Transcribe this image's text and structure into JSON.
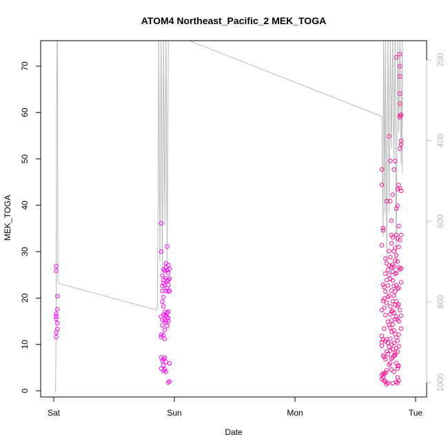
{
  "chart_data": {
    "type": "scatter",
    "title": "ATOM4 Northeast_Pacific_2 MEK_TOGA",
    "xlabel": "Date",
    "ylabel": "MEK_TOGA",
    "x_tick_labels": [
      "Sat",
      "Sun",
      "Mon",
      "Tue"
    ],
    "x_tick_days": [
      0,
      1,
      2,
      3
    ],
    "xlim_days": [
      -0.12,
      3.12
    ],
    "ylim": [
      0,
      75
    ],
    "y_ticks": [
      0,
      10,
      20,
      30,
      40,
      50,
      60,
      70
    ],
    "right_axis": {
      "label": "",
      "ticks": [
        200,
        400,
        600,
        800,
        1000
      ],
      "ylim_reversed": [
        1025,
        140
      ],
      "color": "#b8b8b8"
    },
    "colors": {
      "points": "#ff00ff",
      "points_late": "#ff1493",
      "altitude_line": "#b8b8b8"
    },
    "series": [
      {
        "marker": "open-circle",
        "color": "#ff00ff",
        "points": [
          [
            0.02,
            26.9
          ],
          [
            0.02,
            25.9
          ],
          [
            0.02,
            16.6
          ],
          [
            0.02,
            16.1
          ],
          [
            0.02,
            15.5
          ],
          [
            0.02,
            12.6
          ],
          [
            0.02,
            11.6
          ],
          [
            0.03,
            20.4
          ],
          [
            0.03,
            17.6
          ],
          [
            0.03,
            14.6
          ],
          [
            0.03,
            13.3
          ],
          [
            0.89,
            36.1
          ],
          [
            0.89,
            30.0
          ],
          [
            0.89,
            16.0
          ],
          [
            0.89,
            12.1
          ],
          [
            0.89,
            11.6
          ],
          [
            0.89,
            7.2
          ],
          [
            0.89,
            4.8
          ],
          [
            0.9,
            24.9
          ],
          [
            0.9,
            22.6
          ],
          [
            0.9,
            21.5
          ],
          [
            0.9,
            19.2
          ],
          [
            0.9,
            15.3
          ],
          [
            0.9,
            14.1
          ],
          [
            0.9,
            6.4
          ],
          [
            0.91,
            26.2
          ],
          [
            0.91,
            23.9
          ],
          [
            0.91,
            23.2
          ],
          [
            0.91,
            20.2
          ],
          [
            0.91,
            18.2
          ],
          [
            0.91,
            16.4
          ],
          [
            0.91,
            12.0
          ],
          [
            0.91,
            6.8
          ],
          [
            0.91,
            5.5
          ],
          [
            0.91,
            4.3
          ],
          [
            0.92,
            25.9
          ],
          [
            0.92,
            22.8
          ],
          [
            0.92,
            17.0
          ],
          [
            0.92,
            15.2
          ],
          [
            0.92,
            13.1
          ],
          [
            0.92,
            11.2
          ],
          [
            0.92,
            7.1
          ],
          [
            0.92,
            4.6
          ],
          [
            0.93,
            27.5
          ],
          [
            0.93,
            26.6
          ],
          [
            0.93,
            24.3
          ],
          [
            0.93,
            21.6
          ],
          [
            0.93,
            16.2
          ],
          [
            0.93,
            14.8
          ],
          [
            0.93,
            6.2
          ],
          [
            0.93,
            4.1
          ],
          [
            0.94,
            31.1
          ],
          [
            0.94,
            26.0
          ],
          [
            0.94,
            23.7
          ],
          [
            0.94,
            22.1
          ],
          [
            0.94,
            16.8
          ],
          [
            0.94,
            15.8
          ],
          [
            0.94,
            14.0
          ],
          [
            0.95,
            27.1
          ],
          [
            0.95,
            25.4
          ],
          [
            0.95,
            23.9
          ],
          [
            0.95,
            22.8
          ],
          [
            0.95,
            21.4
          ],
          [
            0.95,
            17.1
          ],
          [
            0.95,
            15.7
          ],
          [
            0.95,
            15.0
          ],
          [
            0.95,
            1.8
          ],
          [
            0.96,
            26.3
          ],
          [
            0.96,
            24.2
          ],
          [
            0.96,
            21.6
          ],
          [
            0.96,
            5.9
          ],
          [
            0.96,
            2.0
          ]
        ]
      },
      {
        "marker": "open-circle",
        "color": "#ff1493",
        "points": [
          [
            2.72,
            47.7
          ],
          [
            2.72,
            44.4
          ],
          [
            2.72,
            31.4
          ],
          [
            2.72,
            17.4
          ],
          [
            2.72,
            11.8
          ],
          [
            2.72,
            10.5
          ],
          [
            2.72,
            9.7
          ],
          [
            2.72,
            3.4
          ],
          [
            2.72,
            2.5
          ],
          [
            2.73,
            35.1
          ],
          [
            2.73,
            34.6
          ],
          [
            2.73,
            22.9
          ],
          [
            2.73,
            19.4
          ],
          [
            2.73,
            11.0
          ],
          [
            2.73,
            7.6
          ],
          [
            2.73,
            3.7
          ],
          [
            2.73,
            2.9
          ],
          [
            2.74,
            22.4
          ],
          [
            2.74,
            19.9
          ],
          [
            2.74,
            17.9
          ],
          [
            2.74,
            13.4
          ],
          [
            2.74,
            7.3
          ],
          [
            2.74,
            3.6
          ],
          [
            2.74,
            2.2
          ],
          [
            2.75,
            28.5
          ],
          [
            2.75,
            25.3
          ],
          [
            2.75,
            21.4
          ],
          [
            2.75,
            16.3
          ],
          [
            2.75,
            10.7
          ],
          [
            2.75,
            6.8
          ],
          [
            2.75,
            3.9
          ],
          [
            2.75,
            1.9
          ],
          [
            2.76,
            40.9
          ],
          [
            2.76,
            27.5
          ],
          [
            2.76,
            23.9
          ],
          [
            2.76,
            19.0
          ],
          [
            2.76,
            11.1
          ],
          [
            2.76,
            8.5
          ],
          [
            2.76,
            4.4
          ],
          [
            2.76,
            1.4
          ],
          [
            2.77,
            26.1
          ],
          [
            2.77,
            22.7
          ],
          [
            2.77,
            20.2
          ],
          [
            2.77,
            14.9
          ],
          [
            2.77,
            10.3
          ],
          [
            2.77,
            7.9
          ],
          [
            2.77,
            1.7
          ],
          [
            2.78,
            54.9
          ],
          [
            2.78,
            30.1
          ],
          [
            2.78,
            27.0
          ],
          [
            2.78,
            25.0
          ],
          [
            2.78,
            20.5
          ],
          [
            2.78,
            14.2
          ],
          [
            2.78,
            9.5
          ],
          [
            2.78,
            5.6
          ],
          [
            2.79,
            49.6
          ],
          [
            2.79,
            40.9
          ],
          [
            2.79,
            28.8
          ],
          [
            2.79,
            24.1
          ],
          [
            2.79,
            18.2
          ],
          [
            2.79,
            16.5
          ],
          [
            2.79,
            13.6
          ],
          [
            2.79,
            11.2
          ],
          [
            2.79,
            8.7
          ],
          [
            2.79,
            6.0
          ],
          [
            2.8,
            36.7
          ],
          [
            2.8,
            33.6
          ],
          [
            2.8,
            31.8
          ],
          [
            2.8,
            26.7
          ],
          [
            2.8,
            21.6
          ],
          [
            2.8,
            17.1
          ],
          [
            2.8,
            15.2
          ],
          [
            2.8,
            12.7
          ],
          [
            2.8,
            10.0
          ],
          [
            2.8,
            7.0
          ],
          [
            2.8,
            4.6
          ],
          [
            2.81,
            42.3
          ],
          [
            2.81,
            33.1
          ],
          [
            2.81,
            27.2
          ],
          [
            2.81,
            25.7
          ],
          [
            2.81,
            23.8
          ],
          [
            2.81,
            19.3
          ],
          [
            2.81,
            17.3
          ],
          [
            2.81,
            14.3
          ],
          [
            2.81,
            9.0
          ],
          [
            2.81,
            7.2
          ],
          [
            2.81,
            1.6
          ],
          [
            2.82,
            47.7
          ],
          [
            2.82,
            30.1
          ],
          [
            2.82,
            26.8
          ],
          [
            2.82,
            22.6
          ],
          [
            2.82,
            20.5
          ],
          [
            2.82,
            16.8
          ],
          [
            2.82,
            13.0
          ],
          [
            2.82,
            10.3
          ],
          [
            2.82,
            7.6
          ],
          [
            2.82,
            4.1
          ],
          [
            2.83,
            49.5
          ],
          [
            2.83,
            30.8
          ],
          [
            2.83,
            28.1
          ],
          [
            2.83,
            25.2
          ],
          [
            2.83,
            21.4
          ],
          [
            2.83,
            18.5
          ],
          [
            2.83,
            15.4
          ],
          [
            2.83,
            12.2
          ],
          [
            2.83,
            8.1
          ],
          [
            2.83,
            7.7
          ],
          [
            2.84,
            71.9
          ],
          [
            2.84,
            39.3
          ],
          [
            2.84,
            33.6
          ],
          [
            2.84,
            29.2
          ],
          [
            2.84,
            25.4
          ],
          [
            2.84,
            22.8
          ],
          [
            2.84,
            19.3
          ],
          [
            2.84,
            16.0
          ],
          [
            2.84,
            11.5
          ],
          [
            2.84,
            9.2
          ],
          [
            2.84,
            6.0
          ],
          [
            2.84,
            1.9
          ],
          [
            2.85,
            43.5
          ],
          [
            2.85,
            39.9
          ],
          [
            2.85,
            32.8
          ],
          [
            2.85,
            27.9
          ],
          [
            2.85,
            22.0
          ],
          [
            2.85,
            18.3
          ],
          [
            2.85,
            15.4
          ],
          [
            2.85,
            10.8
          ],
          [
            2.85,
            8.4
          ],
          [
            2.85,
            5.4
          ],
          [
            2.85,
            4.8
          ],
          [
            2.85,
            2.9
          ],
          [
            2.85,
            1.7
          ],
          [
            2.86,
            44.4
          ],
          [
            2.86,
            35.5
          ],
          [
            2.86,
            31.0
          ],
          [
            2.86,
            26.6
          ],
          [
            2.86,
            22.2
          ],
          [
            2.86,
            18.6
          ],
          [
            2.86,
            15.0
          ],
          [
            2.86,
            12.1
          ],
          [
            2.86,
            9.6
          ],
          [
            2.86,
            5.4
          ],
          [
            2.86,
            2.2
          ],
          [
            2.87,
            72.6
          ],
          [
            2.87,
            70.0
          ],
          [
            2.87,
            67.8
          ],
          [
            2.87,
            64.1
          ],
          [
            2.87,
            61.9
          ],
          [
            2.87,
            59.4
          ],
          [
            2.87,
            59.0
          ],
          [
            2.87,
            52.2
          ],
          [
            2.87,
            43.7
          ],
          [
            2.87,
            32.5
          ],
          [
            2.87,
            26.2
          ],
          [
            2.87,
            17.4
          ],
          [
            2.88,
            59.5
          ],
          [
            2.88,
            53.9
          ],
          [
            2.88,
            53.1
          ],
          [
            2.88,
            43.1
          ],
          [
            2.88,
            33.6
          ],
          [
            2.88,
            26.4
          ],
          [
            2.88,
            23.4
          ],
          [
            2.88,
            16.2
          ],
          [
            2.88,
            13.4
          ]
        ]
      }
    ],
    "altitude_line": [
      [
        0.015,
        1025
      ],
      [
        0.02,
        860
      ],
      [
        0.023,
        330
      ],
      [
        0.028,
        140
      ],
      [
        0.03,
        140
      ],
      [
        0.035,
        750
      ],
      [
        0.05,
        755
      ],
      [
        0.85,
        820
      ],
      [
        0.86,
        812
      ],
      [
        0.87,
        140
      ],
      [
        0.88,
        700
      ],
      [
        0.89,
        140
      ],
      [
        0.9,
        720
      ],
      [
        0.91,
        140
      ],
      [
        0.92,
        610
      ],
      [
        0.93,
        140
      ],
      [
        0.94,
        700
      ],
      [
        0.95,
        140
      ],
      [
        1.02,
        140
      ],
      [
        2.72,
        340
      ],
      [
        2.73,
        640
      ],
      [
        2.735,
        140
      ],
      [
        2.745,
        580
      ],
      [
        2.75,
        140
      ],
      [
        2.76,
        700
      ],
      [
        2.77,
        140
      ],
      [
        2.78,
        580
      ],
      [
        2.79,
        140
      ],
      [
        2.8,
        420
      ],
      [
        2.81,
        140
      ],
      [
        2.82,
        450
      ],
      [
        2.83,
        140
      ],
      [
        2.84,
        700
      ],
      [
        2.85,
        140
      ],
      [
        2.86,
        380
      ],
      [
        2.87,
        140
      ],
      [
        2.88,
        460
      ],
      [
        2.89,
        140
      ],
      [
        2.89,
        480
      ]
    ]
  }
}
